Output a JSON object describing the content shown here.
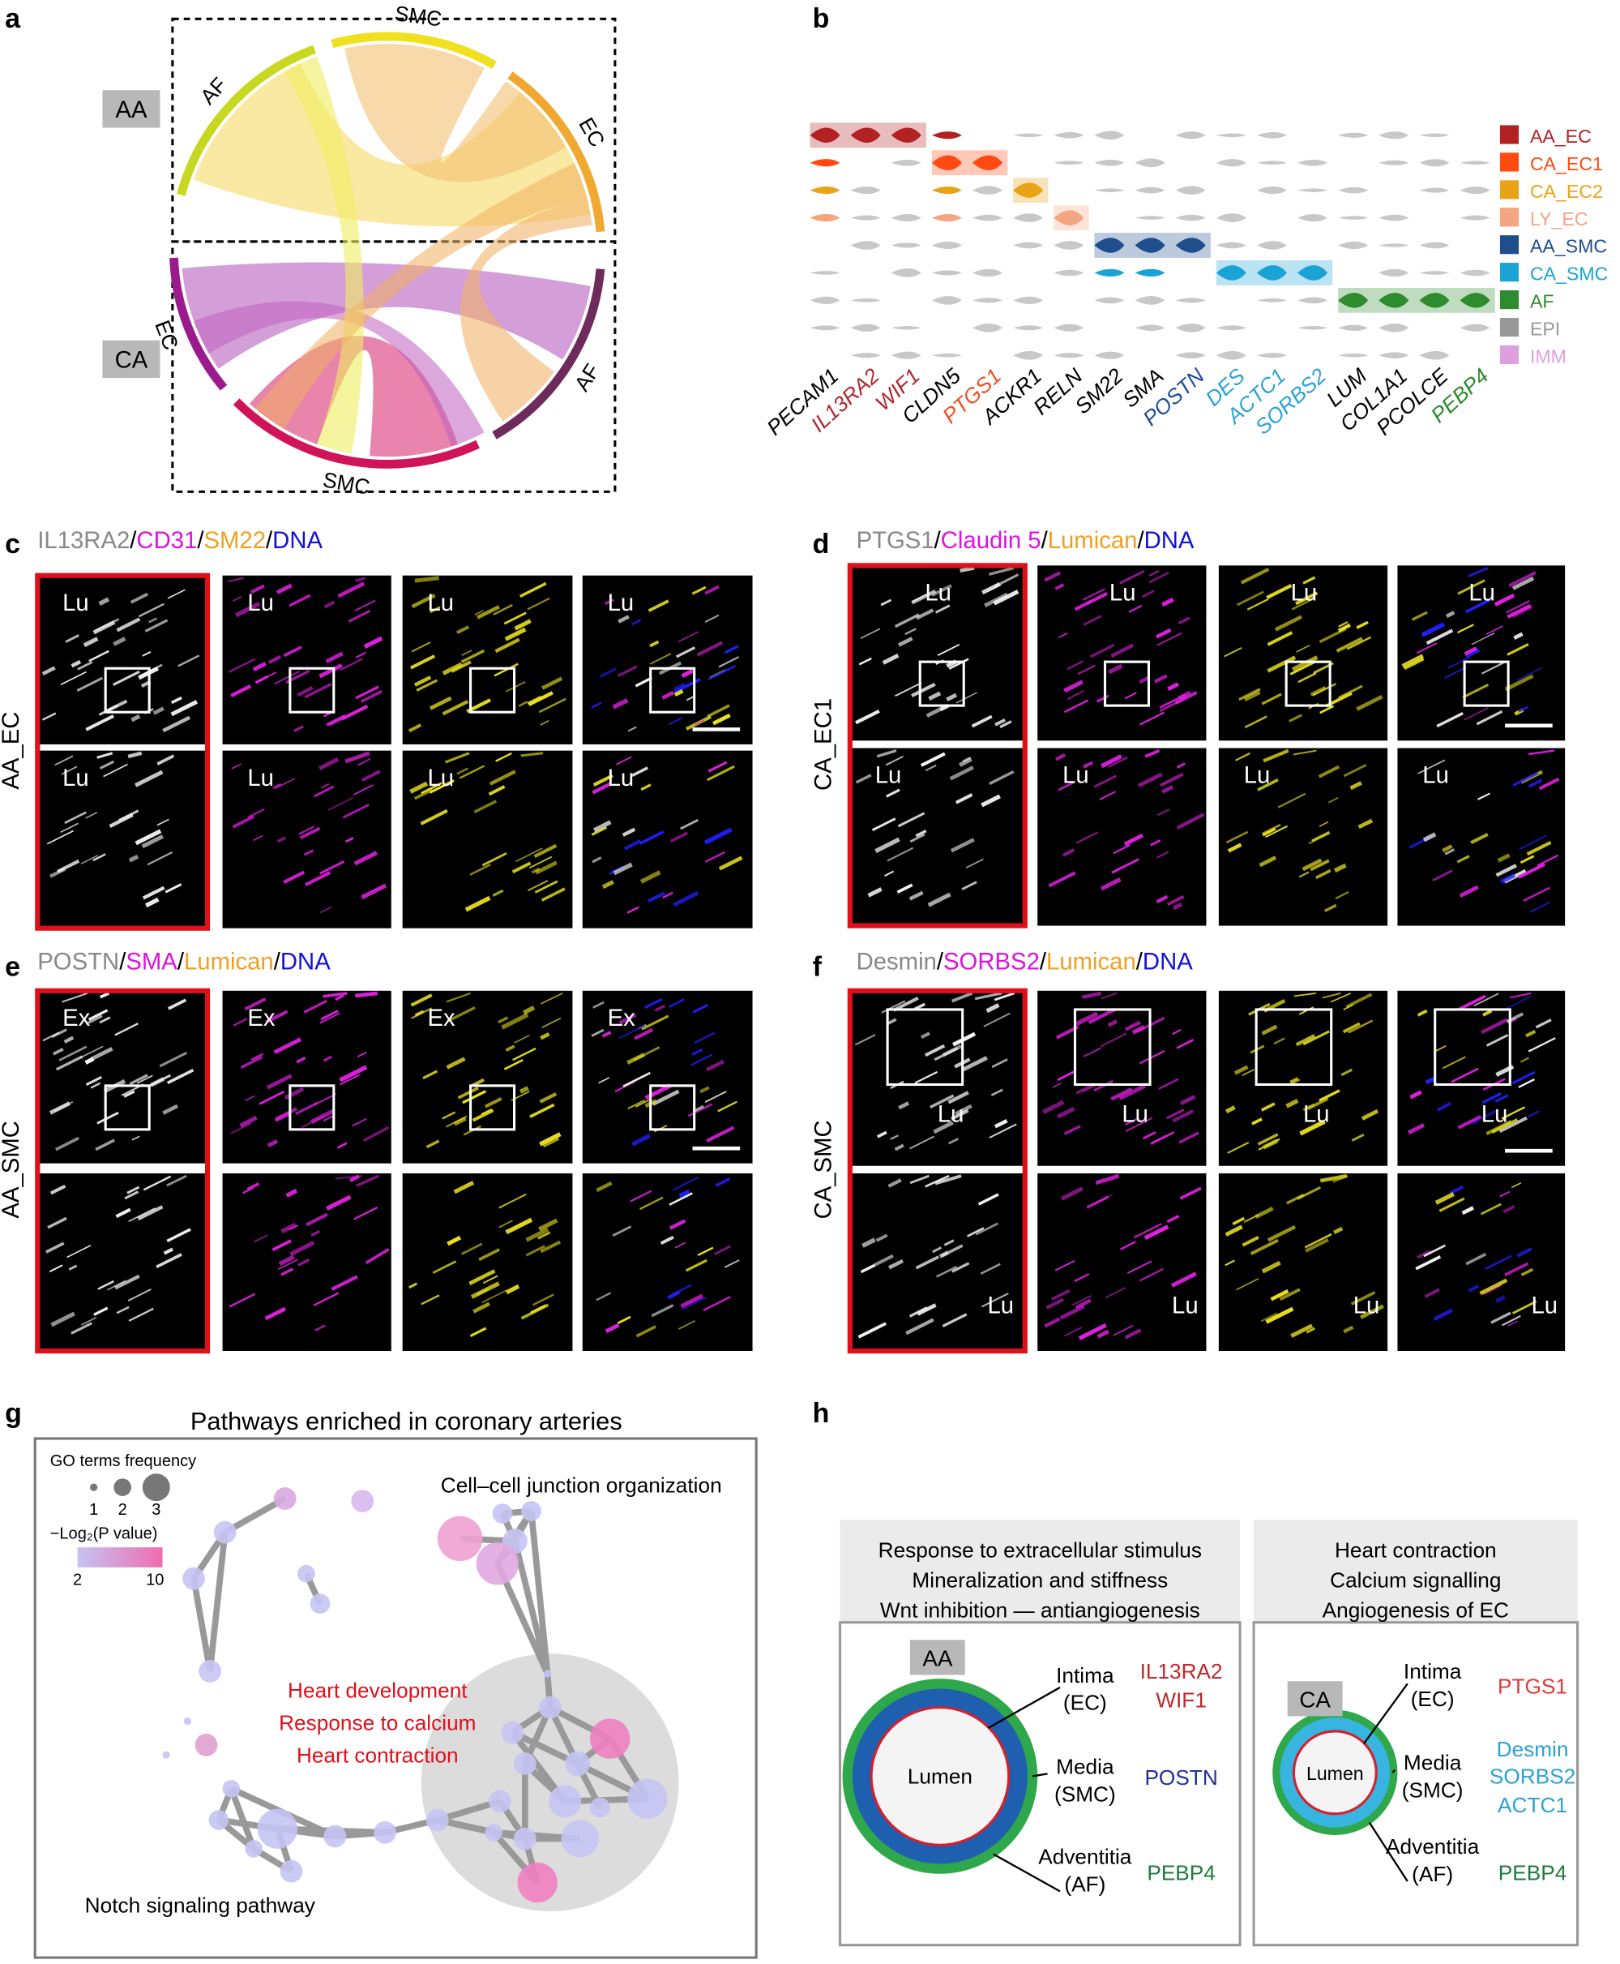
{
  "panel_labels": [
    "a",
    "b",
    "c",
    "d",
    "e",
    "f",
    "g",
    "h"
  ],
  "a": {
    "groups": [
      "AA",
      "CA"
    ],
    "top_arcs": [
      "AF",
      "SMC",
      "EC"
    ],
    "bottom_arcs": [
      "EC",
      "SMC",
      "AF"
    ]
  },
  "b": {
    "genes": [
      {
        "name": "PECAM1",
        "color": "#000000"
      },
      {
        "name": "IL13RA2",
        "color": "#b0272d"
      },
      {
        "name": "WIF1",
        "color": "#b0272d"
      },
      {
        "name": "CLDN5",
        "color": "#000000"
      },
      {
        "name": "PTGS1",
        "color": "#f04e23"
      },
      {
        "name": "ACKR1",
        "color": "#000000"
      },
      {
        "name": "RELN",
        "color": "#000000"
      },
      {
        "name": "SM22",
        "color": "#000000"
      },
      {
        "name": "SMA",
        "color": "#000000"
      },
      {
        "name": "POSTN",
        "color": "#1f4e96"
      },
      {
        "name": "DES",
        "color": "#2aa3d4"
      },
      {
        "name": "ACTC1",
        "color": "#2aa3d4"
      },
      {
        "name": "SORBS2",
        "color": "#2aa3d4"
      },
      {
        "name": "LUM",
        "color": "#000000"
      },
      {
        "name": "COL1A1",
        "color": "#000000"
      },
      {
        "name": "PCOLCE",
        "color": "#000000"
      },
      {
        "name": "PEBP4",
        "color": "#2a8a2a"
      }
    ],
    "legend": [
      {
        "name": "AA_EC",
        "color": "#b22222"
      },
      {
        "name": "CA_EC1",
        "color": "#ff4a12"
      },
      {
        "name": "CA_EC2",
        "color": "#e8a317"
      },
      {
        "name": "LY_EC",
        "color": "#f4a582"
      },
      {
        "name": "AA_SMC",
        "color": "#1f4e8c"
      },
      {
        "name": "CA_SMC",
        "color": "#1ba3d6"
      },
      {
        "name": "AF",
        "color": "#2e8b2e"
      },
      {
        "name": "EPI",
        "color": "#999999"
      },
      {
        "name": "IMM",
        "color": "#dda0dd"
      }
    ]
  },
  "c": {
    "title": [
      {
        "text": "IL13RA2",
        "color": "#888888"
      },
      {
        "text": "/",
        "color": "#000000"
      },
      {
        "text": "CD31",
        "color": "#e010e0"
      },
      {
        "text": "/",
        "color": "#000000"
      },
      {
        "text": "SM22",
        "color": "#f0a020"
      },
      {
        "text": "/",
        "color": "#000000"
      },
      {
        "text": "DNA",
        "color": "#1010e0"
      }
    ],
    "row_label": "AA_EC",
    "image_labels": [
      "Lu",
      "Lu",
      "Lu",
      "Lu",
      "Lu",
      "Lu",
      "Lu",
      "Lu"
    ]
  },
  "d": {
    "title": [
      {
        "text": "PTGS1",
        "color": "#888888"
      },
      {
        "text": "/",
        "color": "#000000"
      },
      {
        "text": "Claudin 5",
        "color": "#e010e0"
      },
      {
        "text": "/",
        "color": "#000000"
      },
      {
        "text": "Lumican",
        "color": "#f0a020"
      },
      {
        "text": "/",
        "color": "#000000"
      },
      {
        "text": "DNA",
        "color": "#1010e0"
      }
    ],
    "row_label": "CA_EC1",
    "image_labels": [
      "Lu",
      "Lu",
      "Lu",
      "Lu",
      "Lu",
      "Lu",
      "Lu",
      "Lu"
    ]
  },
  "e": {
    "title": [
      {
        "text": "POSTN",
        "color": "#888888"
      },
      {
        "text": "/",
        "color": "#000000"
      },
      {
        "text": "SMA",
        "color": "#e010e0"
      },
      {
        "text": "/",
        "color": "#000000"
      },
      {
        "text": "Lumican",
        "color": "#f0a020"
      },
      {
        "text": "/",
        "color": "#000000"
      },
      {
        "text": "DNA",
        "color": "#1010e0"
      }
    ],
    "row_label": "AA_SMC",
    "image_labels": [
      "Ex",
      "Ex",
      "Ex",
      "Ex"
    ]
  },
  "f": {
    "title": [
      {
        "text": "Desmin",
        "color": "#888888"
      },
      {
        "text": "/",
        "color": "#000000"
      },
      {
        "text": "SORBS2",
        "color": "#e010e0"
      },
      {
        "text": "/",
        "color": "#000000"
      },
      {
        "text": "Lumican",
        "color": "#f0a020"
      },
      {
        "text": "/",
        "color": "#000000"
      },
      {
        "text": "DNA",
        "color": "#1010e0"
      }
    ],
    "row_label": "CA_SMC",
    "image_labels": [
      "Lu",
      "Lu",
      "Lu",
      "Lu",
      "Lu",
      "Lu",
      "Lu",
      "Lu"
    ]
  },
  "g": {
    "title": "Pathways enriched in coronary arteries",
    "size_legend_title": "GO terms frequency",
    "size_legend_labels": [
      "1",
      "2",
      "3"
    ],
    "color_legend_title": "−Log₂(P value)",
    "color_legend_labels": [
      "2",
      "10"
    ],
    "annotations": [
      "Cell–cell junction organization",
      "Notch signaling pathway"
    ],
    "highlight": [
      "Heart development",
      "Response to calcium",
      "Heart contraction"
    ]
  },
  "h": {
    "aa": {
      "header": [
        "Response to extracellular stimulus",
        "Mineralization and stiffness",
        "Wnt inhibition — antiangiogenesis"
      ],
      "tag": "AA",
      "lumen": "Lumen",
      "layers": [
        [
          "Intima",
          "(EC)"
        ],
        [
          "Media",
          "(SMC)"
        ],
        [
          "Adventitia",
          "(AF)"
        ]
      ],
      "markers": [
        {
          "text": "IL13RA2",
          "color": "#c0282d"
        },
        {
          "text": "WIF1",
          "color": "#c0282d"
        },
        {
          "text": "POSTN",
          "color": "#1f2f9a"
        },
        {
          "text": "PEBP4",
          "color": "#1e7a3a"
        }
      ]
    },
    "ca": {
      "header": [
        "Heart contraction",
        "Calcium signalling",
        "Angiogenesis of EC"
      ],
      "tag": "CA",
      "lumen": "Lumen",
      "layers": [
        [
          "Intima",
          "(EC)"
        ],
        [
          "Media",
          "(SMC)"
        ],
        [
          "Adventitia",
          "(AF)"
        ]
      ],
      "markers": [
        {
          "text": "PTGS1",
          "color": "#e03a3a"
        },
        {
          "text": "Desmin",
          "color": "#2aa3d4"
        },
        {
          "text": "SORBS2",
          "color": "#2aa3d4"
        },
        {
          "text": "ACTC1",
          "color": "#2aa3d4"
        },
        {
          "text": "PEBP4",
          "color": "#1e7a3a"
        }
      ]
    }
  }
}
